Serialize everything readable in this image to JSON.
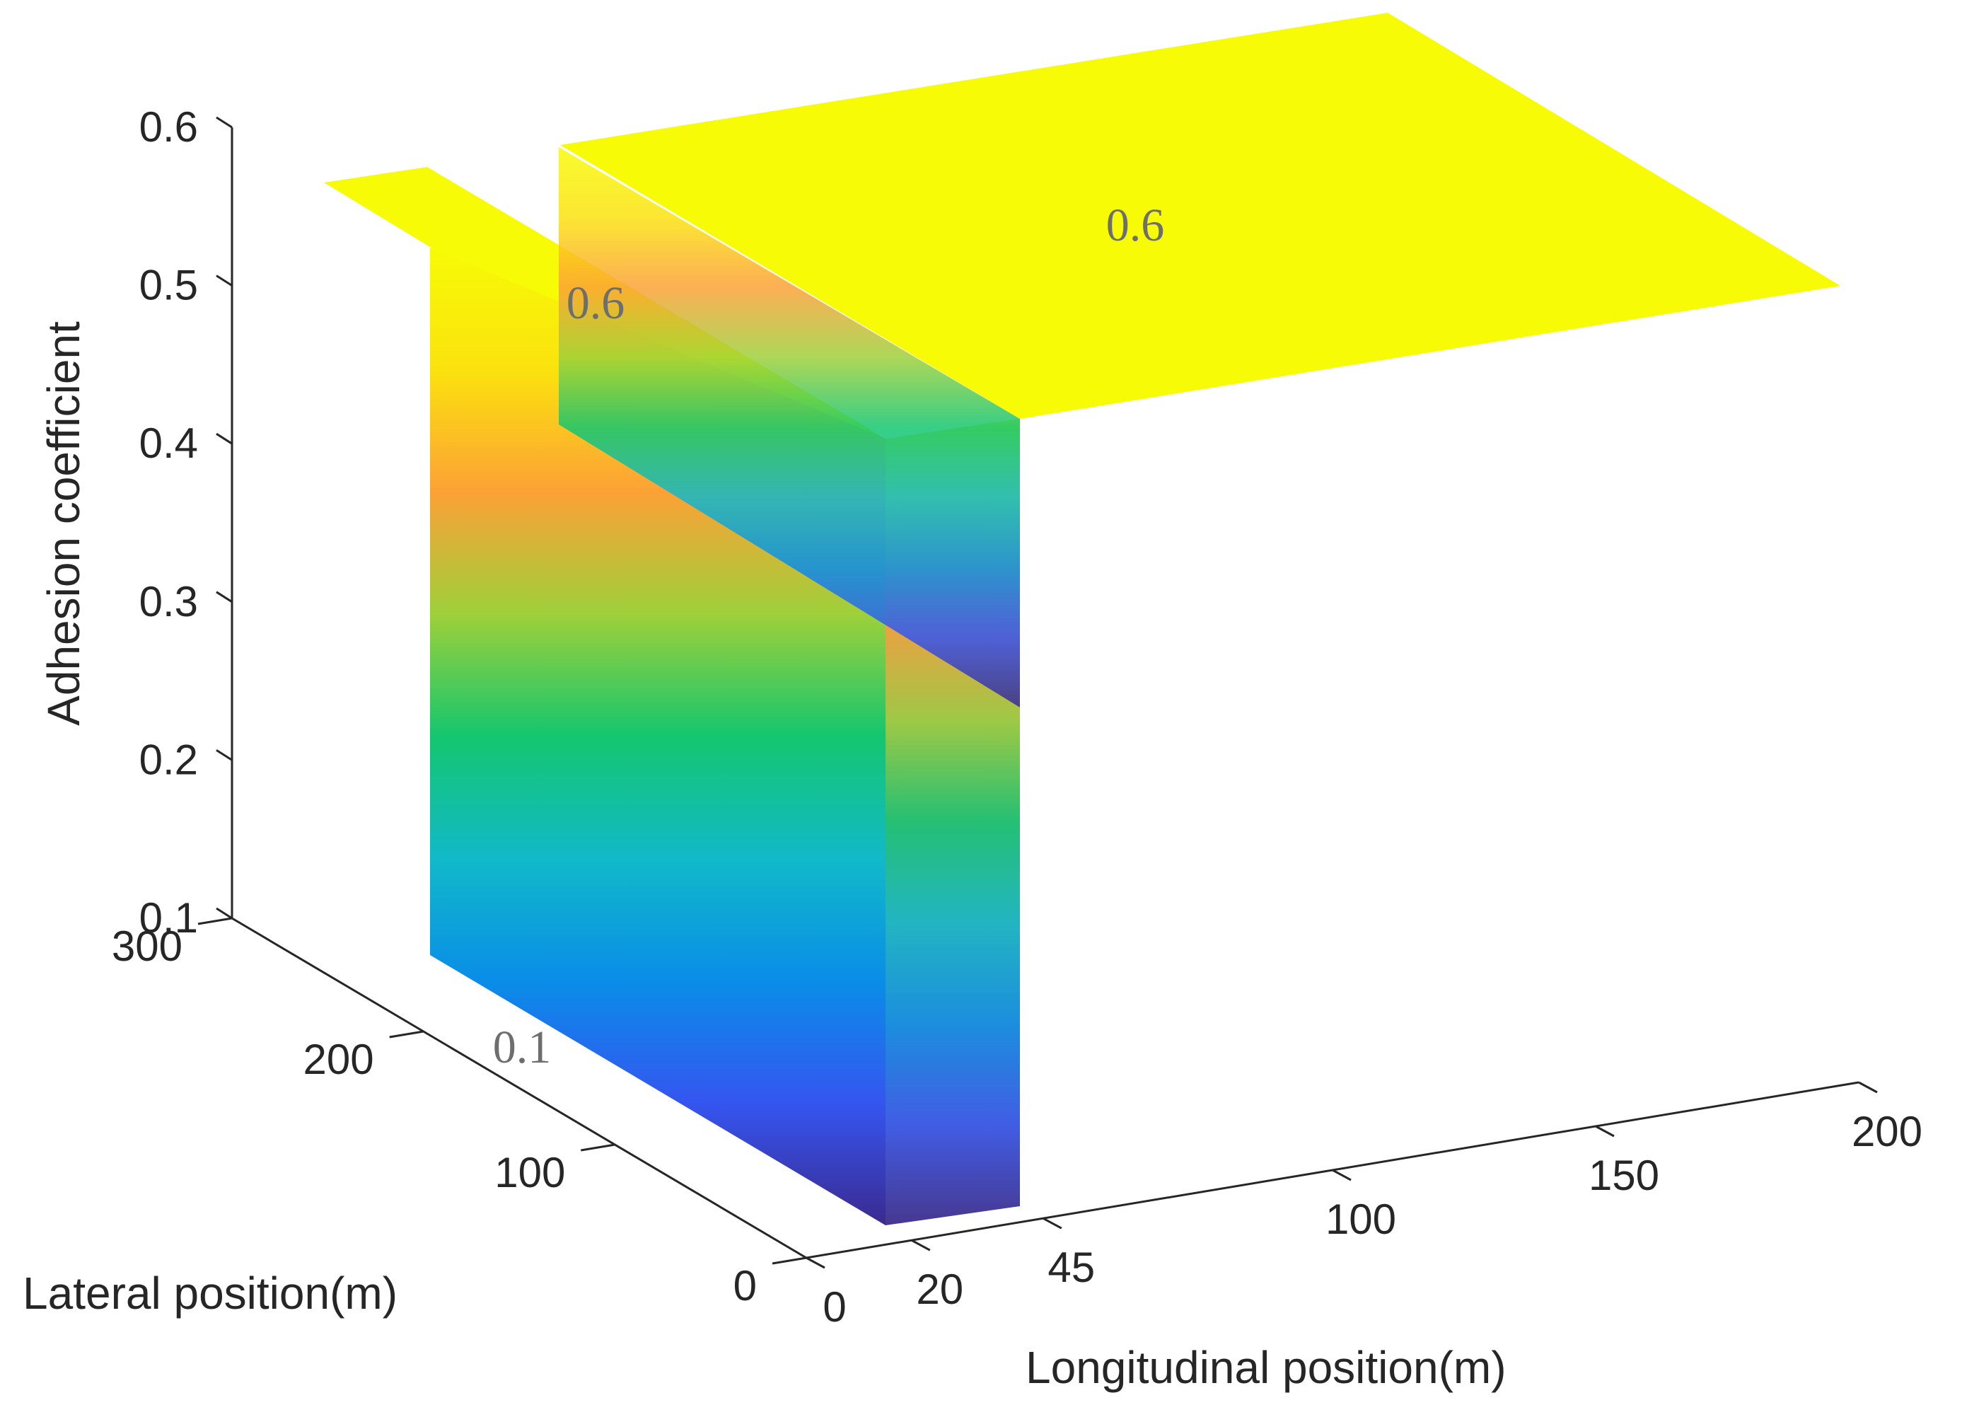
{
  "chart_data": {
    "type": "surface3d",
    "zlabel": "Adhesion coefficient",
    "xlabel": "Longitudinal position(m)",
    "ylabel": "Lateral position(m)",
    "x_ticks": [
      "0",
      "20",
      "45",
      "100",
      "150",
      "200"
    ],
    "y_ticks": [
      "0",
      "100",
      "200",
      "300"
    ],
    "z_ticks": [
      "0.1",
      "0.2",
      "0.3",
      "0.4",
      "0.5",
      "0.6"
    ],
    "xlim": [
      0,
      200
    ],
    "ylim": [
      0,
      300
    ],
    "zlim": [
      0.1,
      0.6
    ],
    "colormap": [
      "#3b2a8f",
      "#3555f0",
      "#0a8de8",
      "#11b9c9",
      "#14c66f",
      "#9ed03a",
      "#fca136",
      "#fbe20e",
      "#f7fb06"
    ],
    "regions": [
      {
        "x_range": [
          0,
          20
        ],
        "y_range": [
          0,
          300
        ],
        "adhesion": 0.6
      },
      {
        "x_range": [
          20,
          45
        ],
        "y_range": [
          0,
          300
        ],
        "adhesion": 0.1
      },
      {
        "x_range": [
          45,
          200
        ],
        "y_range": [
          0,
          300
        ],
        "adhesion": 0.6
      }
    ],
    "annotations": [
      "0.6",
      "0.6",
      "0.1"
    ]
  }
}
